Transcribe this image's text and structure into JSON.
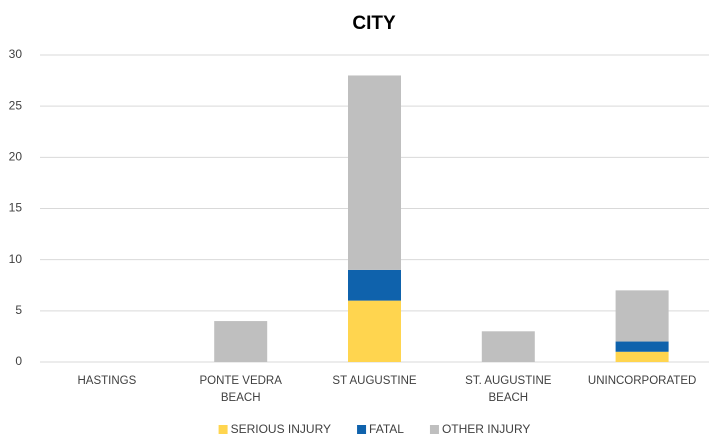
{
  "chart_data": {
    "type": "stacked_bar",
    "title": "CITY",
    "categories": [
      "HASTINGS",
      "PONTE VEDRA BEACH",
      "ST AUGUSTINE",
      "ST. AUGUSTINE BEACH",
      "UNINCORPORATED"
    ],
    "series": [
      {
        "name": "SERIOUS INJURY",
        "color": "#ffd54f",
        "values": [
          0,
          0,
          6,
          0,
          1
        ]
      },
      {
        "name": "FATAL",
        "color": "#0f62ac",
        "values": [
          0,
          0,
          3,
          0,
          1
        ]
      },
      {
        "name": "OTHER INJURY",
        "color": "#bfbfbf",
        "values": [
          0,
          4,
          19,
          3,
          5
        ]
      }
    ],
    "ylim": [
      0,
      30
    ],
    "yticks": [
      0,
      5,
      10,
      15,
      20,
      25,
      30
    ],
    "grid": true,
    "legend": "bottom"
  }
}
